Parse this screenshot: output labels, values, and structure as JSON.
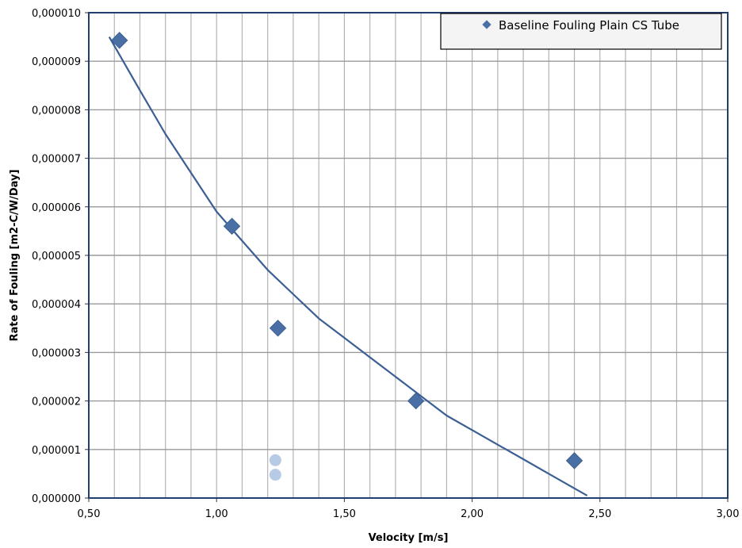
{
  "chart_data": {
    "type": "scatter",
    "title": "",
    "xlabel": "Velocity [m/s]",
    "ylabel": "Rate of Fouling [m2-C/W/Day]",
    "xlim": [
      0.5,
      3.0
    ],
    "ylim": [
      0.0,
      1e-05
    ],
    "x_ticks": [
      {
        "value": 0.5,
        "label": "0,50"
      },
      {
        "value": 1.0,
        "label": "1,00"
      },
      {
        "value": 1.5,
        "label": "1,50"
      },
      {
        "value": 2.0,
        "label": "2,00"
      },
      {
        "value": 2.5,
        "label": "2,50"
      },
      {
        "value": 3.0,
        "label": "3,00"
      }
    ],
    "y_ticks": [
      {
        "value": 0.0,
        "label": "0,000000"
      },
      {
        "value": 1e-06,
        "label": "0,000001"
      },
      {
        "value": 2e-06,
        "label": "0,000002"
      },
      {
        "value": 3e-06,
        "label": "0,000003"
      },
      {
        "value": 4e-06,
        "label": "0,000004"
      },
      {
        "value": 5e-06,
        "label": "0,000005"
      },
      {
        "value": 6e-06,
        "label": "0,000006"
      },
      {
        "value": 7e-06,
        "label": "0,000007"
      },
      {
        "value": 8e-06,
        "label": "0,000008"
      },
      {
        "value": 9e-06,
        "label": "0,000009"
      },
      {
        "value": 1e-05,
        "label": "0,000010"
      }
    ],
    "minor_x_grid_step": 0.1,
    "grid": true,
    "legend": {
      "position": "top-right",
      "entries": [
        "Baseline Fouling Plain CS Tube"
      ]
    },
    "series": [
      {
        "name": "Baseline Fouling Plain CS Tube",
        "marker": "diamond",
        "color": "#4a6fa5",
        "x": [
          0.62,
          1.06,
          1.24,
          1.78,
          2.4
        ],
        "y": [
          9.43e-06,
          5.6e-06,
          3.5e-06,
          2e-06,
          7.7e-07
        ]
      },
      {
        "marker": "circle",
        "color": "#b8cbe6",
        "x": [
          1.23,
          1.23
        ],
        "y": [
          7.8e-07,
          4.8e-07
        ]
      }
    ],
    "trendline": {
      "color": "#3b5f94",
      "x": [
        0.58,
        0.7,
        0.8,
        0.9,
        1.0,
        1.1,
        1.2,
        1.3,
        1.4,
        1.5,
        1.6,
        1.7,
        1.8,
        1.9,
        2.0,
        2.1,
        2.2,
        2.3,
        2.4,
        2.45
      ],
      "y": [
        9.5e-06,
        8.4e-06,
        7.5e-06,
        6.7e-06,
        5.9e-06,
        5.3e-06,
        4.7e-06,
        4.2e-06,
        3.7e-06,
        3.3e-06,
        2.9e-06,
        2.5e-06,
        2.1e-06,
        1.7e-06,
        1.4e-06,
        1.1e-06,
        8e-07,
        5e-07,
        2e-07,
        5e-08
      ]
    }
  }
}
